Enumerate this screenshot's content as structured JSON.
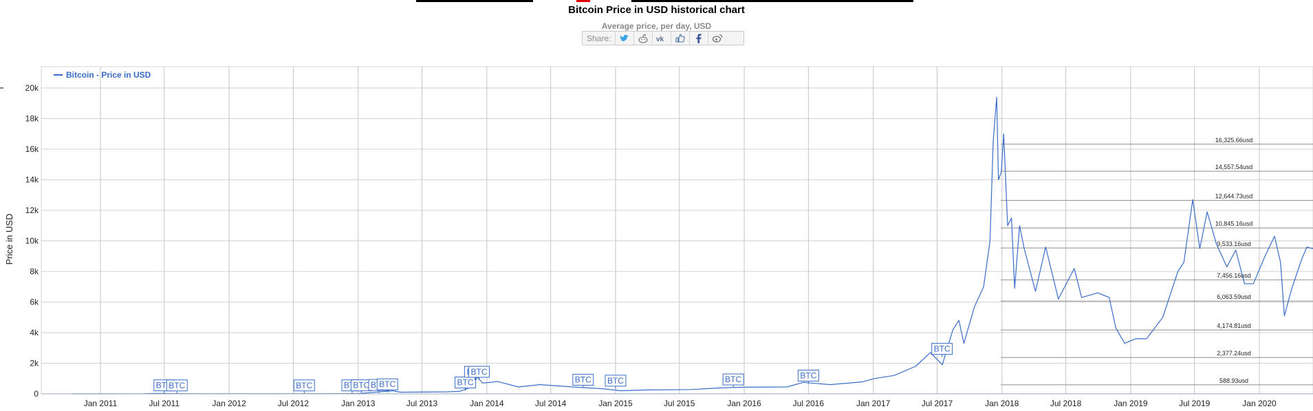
{
  "header": {
    "title": "Bitcoin Price in USD historical chart",
    "subtitle": "Average price, per day, USD",
    "share_label": "Share:",
    "share_icons": [
      "twitter-icon",
      "reddit-icon",
      "vk-icon",
      "like-icon",
      "facebook-icon",
      "weibo-icon"
    ]
  },
  "chart_data": {
    "type": "line",
    "ylabel": "Price in USD",
    "ylim": [
      0,
      21000
    ],
    "yticks": [
      "0",
      "2k",
      "4k",
      "6k",
      "8k",
      "10k",
      "12k",
      "14k",
      "16k",
      "18k",
      "20k"
    ],
    "xticks": [
      "Jan 2011",
      "Jul 2011",
      "Jan 2012",
      "Jul 2012",
      "Jan 2013",
      "Jul 2013",
      "Jan 2014",
      "Jul 2014",
      "Jan 2015",
      "Jul 2015",
      "Jan 2016",
      "Jul 2016",
      "Jan 2017",
      "Jul 2017",
      "Jan 2018",
      "Jul 2018",
      "Jan 2019",
      "Jul 2019",
      "Jan 2020"
    ],
    "grid": true,
    "legend_position": "top-left",
    "line_color": "#3a6cc9",
    "series": [
      {
        "name": "Bitcoin - Price in USD",
        "x": [
          "2010-10-15",
          "2011-01-01",
          "2011-05-01",
          "2011-06-10",
          "2011-07-15",
          "2011-10-01",
          "2012-01-01",
          "2012-08-01",
          "2013-01-01",
          "2013-04-10",
          "2013-05-01",
          "2013-09-01",
          "2013-10-15",
          "2013-11-20",
          "2013-12-05",
          "2013-12-20",
          "2014-02-01",
          "2014-04-01",
          "2014-06-01",
          "2014-09-01",
          "2014-12-01",
          "2015-01-15",
          "2015-04-01",
          "2015-08-01",
          "2015-11-05",
          "2016-01-01",
          "2016-05-01",
          "2016-06-17",
          "2016-09-01",
          "2016-12-01",
          "2017-01-04",
          "2017-03-01",
          "2017-05-01",
          "2017-06-12",
          "2017-07-16",
          "2017-08-15",
          "2017-09-01",
          "2017-09-15",
          "2017-10-15",
          "2017-11-10",
          "2017-11-28",
          "2017-12-07",
          "2017-12-17",
          "2017-12-22",
          "2017-12-30",
          "2018-01-06",
          "2018-01-17",
          "2018-01-28",
          "2018-02-06",
          "2018-02-20",
          "2018-03-05",
          "2018-04-06",
          "2018-05-05",
          "2018-06-10",
          "2018-07-25",
          "2018-08-15",
          "2018-09-30",
          "2018-11-01",
          "2018-11-20",
          "2018-12-15",
          "2019-01-15",
          "2019-02-15",
          "2019-04-02",
          "2019-05-15",
          "2019-06-01",
          "2019-06-26",
          "2019-07-16",
          "2019-08-06",
          "2019-09-01",
          "2019-10-01",
          "2019-10-26",
          "2019-11-20",
          "2019-12-15",
          "2020-01-15",
          "2020-02-13",
          "2020-03-01",
          "2020-03-12",
          "2020-04-01",
          "2020-04-30",
          "2020-05-15",
          "2020-06-15"
        ],
        "y": [
          0,
          0,
          5,
          25,
          14,
          3,
          6,
          11,
          14,
          200,
          110,
          125,
          160,
          450,
          1100,
          700,
          800,
          450,
          600,
          450,
          320,
          200,
          250,
          280,
          400,
          430,
          450,
          750,
          600,
          780,
          1000,
          1200,
          1800,
          2700,
          1900,
          4200,
          4800,
          3300,
          5700,
          7000,
          10000,
          16500,
          19400,
          14000,
          14500,
          17000,
          11000,
          11500,
          6900,
          11000,
          9500,
          6700,
          9600,
          6200,
          8200,
          6300,
          6600,
          6300,
          4300,
          3300,
          3600,
          3600,
          5000,
          8000,
          8600,
          12700,
          9500,
          11900,
          9800,
          8300,
          9400,
          7200,
          7200,
          8900,
          10300,
          8600,
          5100,
          6800,
          8800,
          9600,
          9400
        ]
      }
    ],
    "levels": [
      {
        "label": "16,325.66usd",
        "value": 16325.66
      },
      {
        "label": "14,557.54usd",
        "value": 14557.54
      },
      {
        "label": "12,644.73usd",
        "value": 12644.73
      },
      {
        "label": "10,845.16usd",
        "value": 10845.16
      },
      {
        "label": "9,533.16usd",
        "value": 9533.16
      },
      {
        "label": "7,456.16usd",
        "value": 7456.16
      },
      {
        "label": "6,063.59usd",
        "value": 6063.59
      },
      {
        "label": "4,174.81usd",
        "value": 4174.81
      },
      {
        "label": "2,377.24usd",
        "value": 2377.24
      },
      {
        "label": "588.93usd",
        "value": 588.93
      }
    ],
    "flags": [
      {
        "label": "BTC",
        "date": "2011-07-01",
        "value": 15
      },
      {
        "label": "BTC",
        "date": "2011-08-06",
        "value": 10
      },
      {
        "label": "BTC",
        "date": "2012-08-01",
        "value": 11
      },
      {
        "label": "BTC",
        "date": "2012-12-15",
        "value": 13
      },
      {
        "label": "BTC",
        "date": "2013-01-10",
        "value": 15
      },
      {
        "label": "BTC",
        "date": "2013-03-01",
        "value": 40
      },
      {
        "label": "BTC",
        "date": "2013-03-25",
        "value": 80
      },
      {
        "label": "BTC",
        "date": "2013-11-01",
        "value": 200
      },
      {
        "label": "BTC",
        "date": "2013-11-28",
        "value": 900
      },
      {
        "label": "BTC",
        "date": "2013-12-10",
        "value": 900
      },
      {
        "label": "BTC",
        "date": "2014-10-01",
        "value": 380
      },
      {
        "label": "BTC",
        "date": "2015-01-01",
        "value": 320
      },
      {
        "label": "BTC",
        "date": "2015-12-01",
        "value": 400
      },
      {
        "label": "BTC",
        "date": "2016-07-01",
        "value": 650
      },
      {
        "label": "BTC",
        "date": "2017-07-15",
        "value": 2400
      }
    ]
  }
}
